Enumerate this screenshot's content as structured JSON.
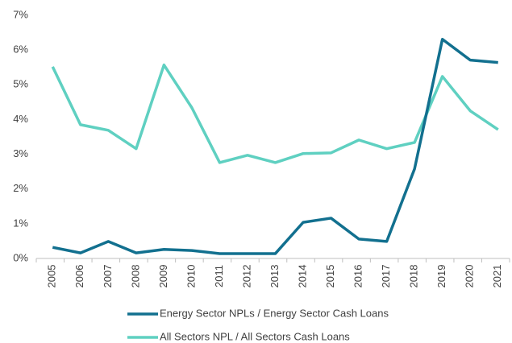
{
  "chart_data": {
    "type": "line",
    "categories": [
      "2005",
      "2006",
      "2007",
      "2008",
      "2009",
      "2010",
      "2011",
      "2012",
      "2013",
      "2014",
      "2015",
      "2016",
      "2017",
      "2018",
      "2019",
      "2020",
      "2021"
    ],
    "series": [
      {
        "name": "Energy Sector NPLs / Energy Sector Cash Loans",
        "color": "#12708f",
        "values": [
          0.32,
          0.16,
          0.49,
          0.16,
          0.26,
          0.23,
          0.14,
          0.14,
          0.14,
          1.04,
          1.16,
          0.56,
          0.49,
          2.58,
          6.31,
          5.71,
          5.64
        ]
      },
      {
        "name": "All Sectors NPL / All Sectors Cash Loans",
        "color": "#5fd0c1",
        "values": [
          5.52,
          3.85,
          3.69,
          3.16,
          5.57,
          4.34,
          2.76,
          2.97,
          2.76,
          3.02,
          3.04,
          3.41,
          3.16,
          3.34,
          5.24,
          4.25,
          3.71
        ]
      }
    ],
    "ylim": [
      0,
      7
    ],
    "yticks": [
      {
        "value": 0,
        "label": "0%"
      },
      {
        "value": 1,
        "label": "1%"
      },
      {
        "value": 2,
        "label": "2%"
      },
      {
        "value": 3,
        "label": "3%"
      },
      {
        "value": 4,
        "label": "4%"
      },
      {
        "value": 5,
        "label": "5%"
      },
      {
        "value": 6,
        "label": "6%"
      },
      {
        "value": 7,
        "label": "7%"
      }
    ],
    "grid": false,
    "legend": "bottom"
  }
}
